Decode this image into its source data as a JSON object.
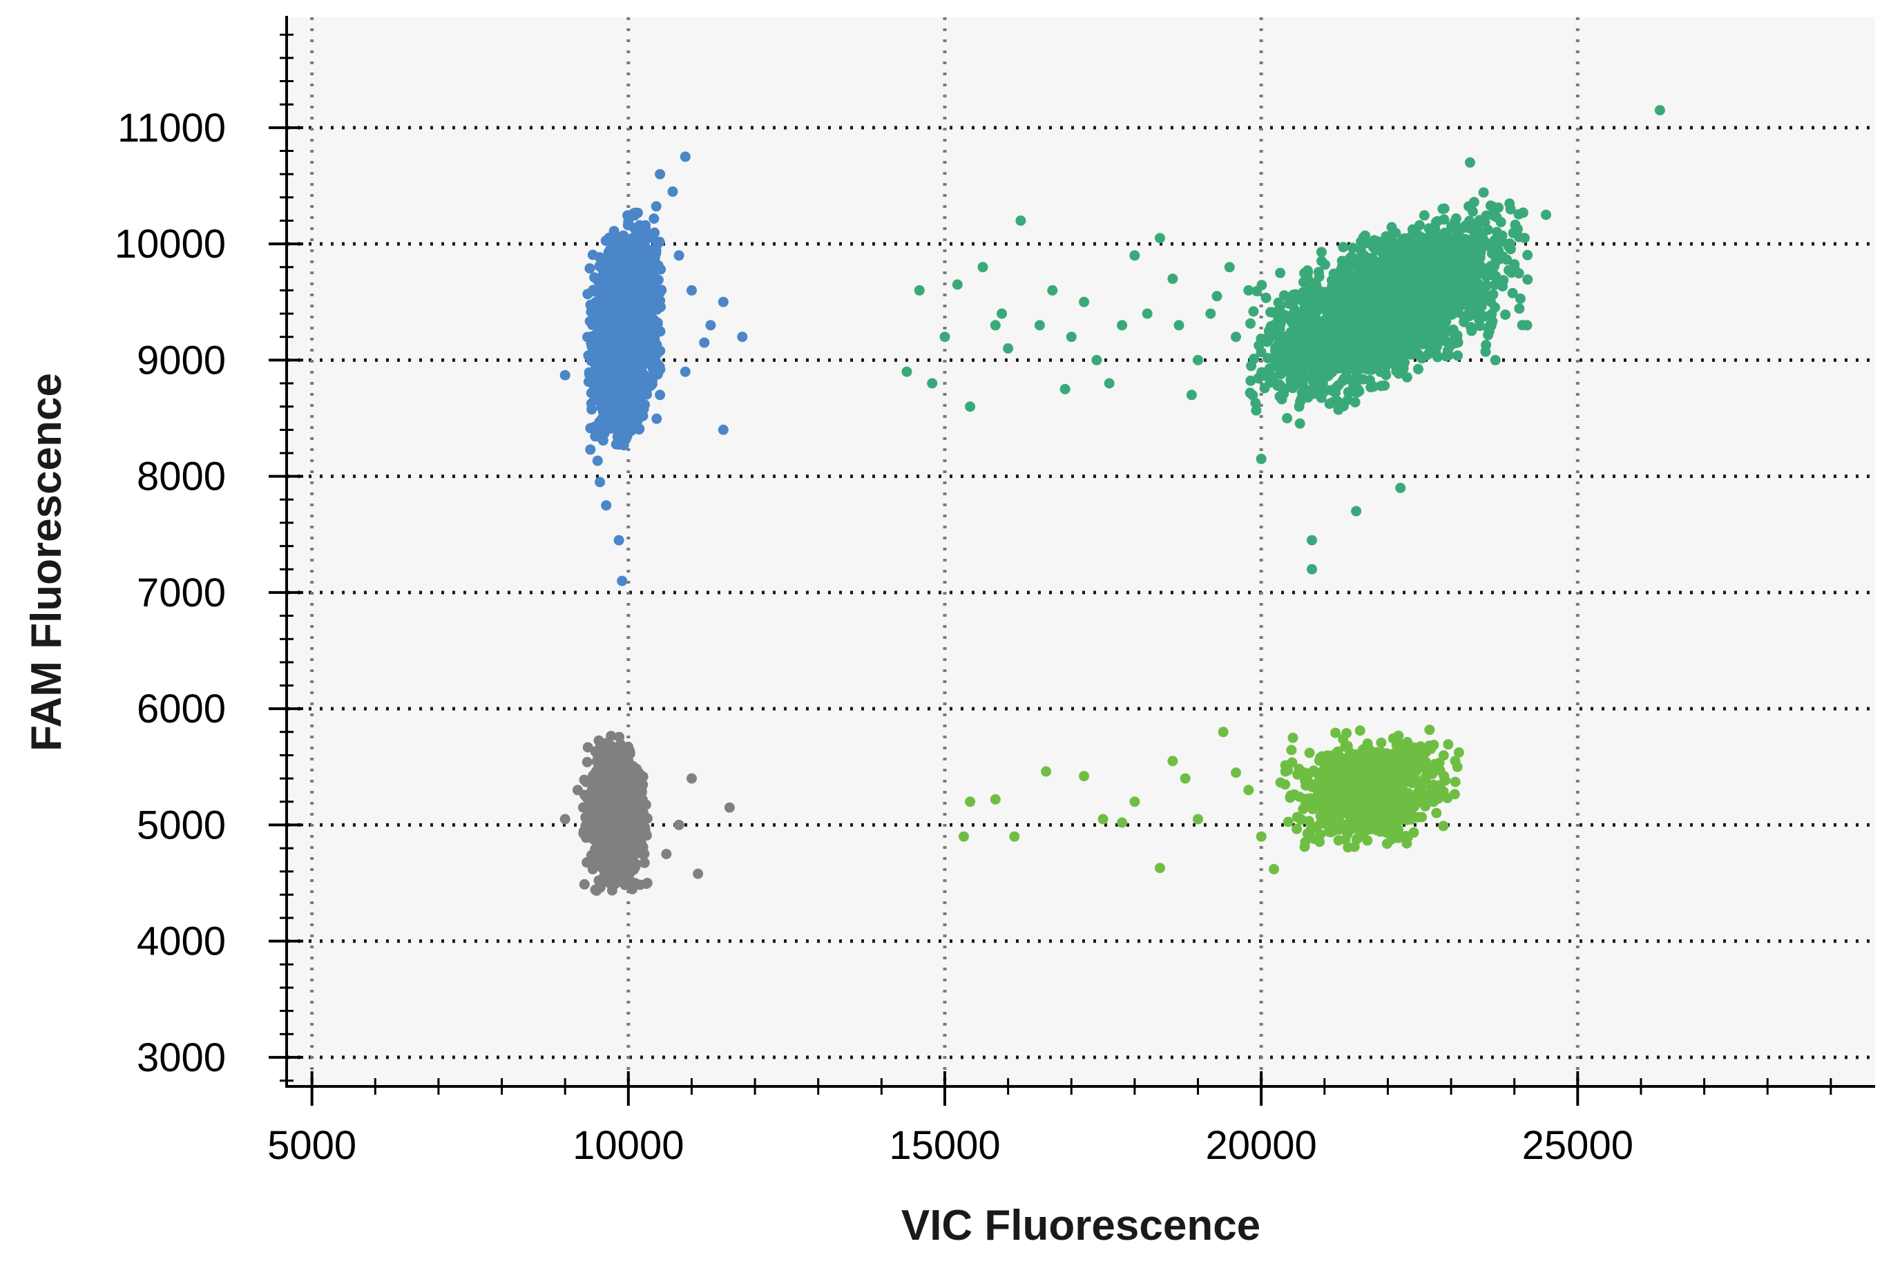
{
  "chart_data": {
    "type": "scatter",
    "xlabel": "VIC Fluorescence",
    "ylabel": "FAM Fluorescence",
    "xlim": [
      4600,
      29700
    ],
    "ylim": [
      2750,
      11950
    ],
    "x_ticks": [
      5000,
      10000,
      15000,
      20000,
      25000
    ],
    "y_ticks": [
      3000,
      4000,
      5000,
      6000,
      7000,
      8000,
      9000,
      10000,
      11000
    ],
    "x_minor_step": 1000,
    "y_minor_step": 200,
    "grid": true,
    "legend": "none",
    "colors": {
      "plot_background": "#f5f6f5",
      "grid": "#1a1a1a",
      "grid_vertical": "#7a7a7a",
      "axis": "#000000"
    },
    "clusters": [
      {
        "color": "#4a86c8",
        "count": 2200,
        "center": [
          9950,
          9250
        ],
        "spread": [
          230,
          400
        ],
        "correlation": 0.25,
        "outliers": [
          [
            9000,
            8870
          ],
          [
            9400,
            8230
          ],
          [
            9550,
            7950
          ],
          [
            9650,
            7750
          ],
          [
            9850,
            7450
          ],
          [
            9900,
            7100
          ],
          [
            10500,
            8700
          ],
          [
            10800,
            9900
          ],
          [
            11000,
            9600
          ],
          [
            11300,
            9300
          ],
          [
            11500,
            9500
          ],
          [
            11500,
            8400
          ],
          [
            11800,
            9200
          ],
          [
            10900,
            10750
          ],
          [
            10700,
            10450
          ],
          [
            10500,
            10600
          ],
          [
            11200,
            9150
          ],
          [
            10900,
            8900
          ]
        ]
      },
      {
        "color": "#808080",
        "count": 1400,
        "center": [
          9800,
          5100
        ],
        "spread": [
          200,
          260
        ],
        "correlation": 0.0,
        "outliers": [
          [
            9000,
            5050
          ],
          [
            10600,
            4750
          ],
          [
            11000,
            5400
          ],
          [
            11100,
            4580
          ],
          [
            11600,
            5150
          ],
          [
            10300,
            4500
          ],
          [
            10800,
            5000
          ],
          [
            9200,
            5300
          ]
        ]
      },
      {
        "color": "#3aa979",
        "count": 2500,
        "center": [
          22000,
          9450
        ],
        "spread": [
          850,
          330
        ],
        "correlation": 0.55,
        "outliers": [
          [
            14400,
            8900
          ],
          [
            14800,
            8800
          ],
          [
            15200,
            9650
          ],
          [
            15400,
            8600
          ],
          [
            15600,
            9800
          ],
          [
            15900,
            9400
          ],
          [
            16200,
            10200
          ],
          [
            16500,
            9300
          ],
          [
            16900,
            8750
          ],
          [
            17200,
            9500
          ],
          [
            17600,
            8800
          ],
          [
            18000,
            9900
          ],
          [
            18400,
            10050
          ],
          [
            18700,
            9300
          ],
          [
            18900,
            8700
          ],
          [
            19300,
            9550
          ],
          [
            19600,
            9200
          ],
          [
            20000,
            8150
          ],
          [
            20300,
            9750
          ],
          [
            20800,
            7200
          ],
          [
            20800,
            7450
          ],
          [
            21500,
            7700
          ],
          [
            22200,
            7900
          ],
          [
            24500,
            10250
          ],
          [
            26300,
            11150
          ],
          [
            23300,
            10700
          ],
          [
            24000,
            10100
          ],
          [
            15000,
            9200
          ],
          [
            16000,
            9100
          ],
          [
            17800,
            9300
          ],
          [
            19000,
            9000
          ],
          [
            19800,
            9600
          ],
          [
            24200,
            9300
          ],
          [
            23700,
            9000
          ],
          [
            14600,
            9600
          ],
          [
            15800,
            9300
          ],
          [
            17000,
            9200
          ],
          [
            18200,
            9400
          ],
          [
            19500,
            9800
          ],
          [
            20600,
            8600
          ],
          [
            16700,
            9600
          ],
          [
            17400,
            9000
          ],
          [
            18600,
            9700
          ],
          [
            19200,
            9400
          ],
          [
            20200,
            9300
          ]
        ]
      },
      {
        "color": "#6fbe44",
        "count": 800,
        "center": [
          21700,
          5300
        ],
        "spread": [
          550,
          200
        ],
        "correlation": 0.1,
        "outliers": [
          [
            15300,
            4900
          ],
          [
            15400,
            5200
          ],
          [
            15800,
            5220
          ],
          [
            16100,
            4900
          ],
          [
            16600,
            5460
          ],
          [
            17200,
            5420
          ],
          [
            17500,
            5050
          ],
          [
            17800,
            5020
          ],
          [
            18000,
            5200
          ],
          [
            18400,
            4630
          ],
          [
            18600,
            5550
          ],
          [
            19000,
            5050
          ],
          [
            19400,
            5800
          ],
          [
            19800,
            5300
          ],
          [
            20000,
            4900
          ],
          [
            20200,
            4620
          ],
          [
            20500,
            5750
          ],
          [
            19600,
            5450
          ],
          [
            18800,
            5400
          ],
          [
            23100,
            5500
          ]
        ]
      }
    ]
  }
}
